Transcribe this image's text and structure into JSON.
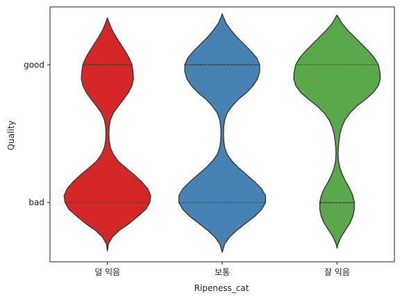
{
  "chart_data": {
    "type": "violin",
    "xlabel": "Ripeness_cat",
    "ylabel": "Quality",
    "categories": [
      "덜 익음",
      "보통",
      "잘 익음"
    ],
    "y_categories": [
      "good",
      "bad"
    ],
    "grid": false,
    "legend": "none",
    "series": [
      {
        "category": "덜 익음",
        "color": "#d62728",
        "quartiles": {
          "q1": "bad",
          "median": "good",
          "q3": "good"
        },
        "density_profile": [
          [
            -0.35,
            0.0
          ],
          [
            -0.3,
            0.02
          ],
          [
            -0.25,
            0.1
          ],
          [
            -0.2,
            0.25
          ],
          [
            -0.15,
            0.45
          ],
          [
            -0.1,
            0.62
          ],
          [
            -0.05,
            0.78
          ],
          [
            0.0,
            0.86
          ],
          [
            0.05,
            0.88
          ],
          [
            0.1,
            0.82
          ],
          [
            0.15,
            0.7
          ],
          [
            0.2,
            0.55
          ],
          [
            0.25,
            0.38
          ],
          [
            0.3,
            0.22
          ],
          [
            0.35,
            0.12
          ],
          [
            0.4,
            0.06
          ],
          [
            0.45,
            0.035
          ],
          [
            0.5,
            0.03
          ],
          [
            0.55,
            0.035
          ],
          [
            0.6,
            0.06
          ],
          [
            0.65,
            0.12
          ],
          [
            0.7,
            0.22
          ],
          [
            0.75,
            0.33
          ],
          [
            0.8,
            0.43
          ],
          [
            0.85,
            0.5
          ],
          [
            0.9,
            0.53
          ],
          [
            0.95,
            0.52
          ],
          [
            1.0,
            0.5
          ],
          [
            1.05,
            0.44
          ],
          [
            1.1,
            0.36
          ],
          [
            1.15,
            0.27
          ],
          [
            1.2,
            0.18
          ],
          [
            1.25,
            0.1
          ],
          [
            1.3,
            0.04
          ],
          [
            1.34,
            0.0
          ]
        ]
      },
      {
        "category": "보통",
        "color": "#4682b4",
        "quartiles": {
          "q1": "bad",
          "median": "good",
          "q3": "good"
        },
        "density_profile": [
          [
            -0.36,
            0.0
          ],
          [
            -0.3,
            0.05
          ],
          [
            -0.25,
            0.15
          ],
          [
            -0.2,
            0.3
          ],
          [
            -0.15,
            0.48
          ],
          [
            -0.1,
            0.66
          ],
          [
            -0.05,
            0.8
          ],
          [
            0.0,
            0.88
          ],
          [
            0.05,
            0.88
          ],
          [
            0.1,
            0.8
          ],
          [
            0.15,
            0.66
          ],
          [
            0.2,
            0.5
          ],
          [
            0.25,
            0.34
          ],
          [
            0.3,
            0.2
          ],
          [
            0.35,
            0.1
          ],
          [
            0.4,
            0.05
          ],
          [
            0.45,
            0.03
          ],
          [
            0.5,
            0.025
          ],
          [
            0.55,
            0.03
          ],
          [
            0.6,
            0.05
          ],
          [
            0.65,
            0.1
          ],
          [
            0.7,
            0.2
          ],
          [
            0.75,
            0.33
          ],
          [
            0.8,
            0.5
          ],
          [
            0.85,
            0.63
          ],
          [
            0.9,
            0.72
          ],
          [
            0.95,
            0.76
          ],
          [
            1.0,
            0.76
          ],
          [
            1.05,
            0.7
          ],
          [
            1.1,
            0.58
          ],
          [
            1.15,
            0.44
          ],
          [
            1.2,
            0.3
          ],
          [
            1.25,
            0.18
          ],
          [
            1.3,
            0.08
          ],
          [
            1.35,
            0.02
          ],
          [
            1.37,
            0.0
          ]
        ]
      },
      {
        "category": "잘 익음",
        "color": "#59a84b",
        "quartiles": {
          "q1": "bad",
          "median": "bad",
          "q3": "good"
        },
        "density_profile": [
          [
            -0.33,
            0.0
          ],
          [
            -0.3,
            0.02
          ],
          [
            -0.25,
            0.08
          ],
          [
            -0.2,
            0.17
          ],
          [
            -0.15,
            0.26
          ],
          [
            -0.1,
            0.32
          ],
          [
            -0.05,
            0.35
          ],
          [
            0.0,
            0.35
          ],
          [
            0.05,
            0.32
          ],
          [
            0.1,
            0.26
          ],
          [
            0.15,
            0.18
          ],
          [
            0.2,
            0.11
          ],
          [
            0.25,
            0.06
          ],
          [
            0.3,
            0.03
          ],
          [
            0.35,
            0.02
          ],
          [
            0.4,
            0.025
          ],
          [
            0.45,
            0.04
          ],
          [
            0.5,
            0.06
          ],
          [
            0.55,
            0.1
          ],
          [
            0.6,
            0.16
          ],
          [
            0.65,
            0.26
          ],
          [
            0.7,
            0.4
          ],
          [
            0.75,
            0.58
          ],
          [
            0.8,
            0.74
          ],
          [
            0.85,
            0.84
          ],
          [
            0.9,
            0.88
          ],
          [
            0.95,
            0.87
          ],
          [
            1.0,
            0.84
          ],
          [
            1.05,
            0.76
          ],
          [
            1.1,
            0.64
          ],
          [
            1.15,
            0.5
          ],
          [
            1.2,
            0.36
          ],
          [
            1.25,
            0.22
          ],
          [
            1.3,
            0.1
          ],
          [
            1.35,
            0.02
          ],
          [
            1.36,
            0.0
          ]
        ]
      }
    ]
  }
}
